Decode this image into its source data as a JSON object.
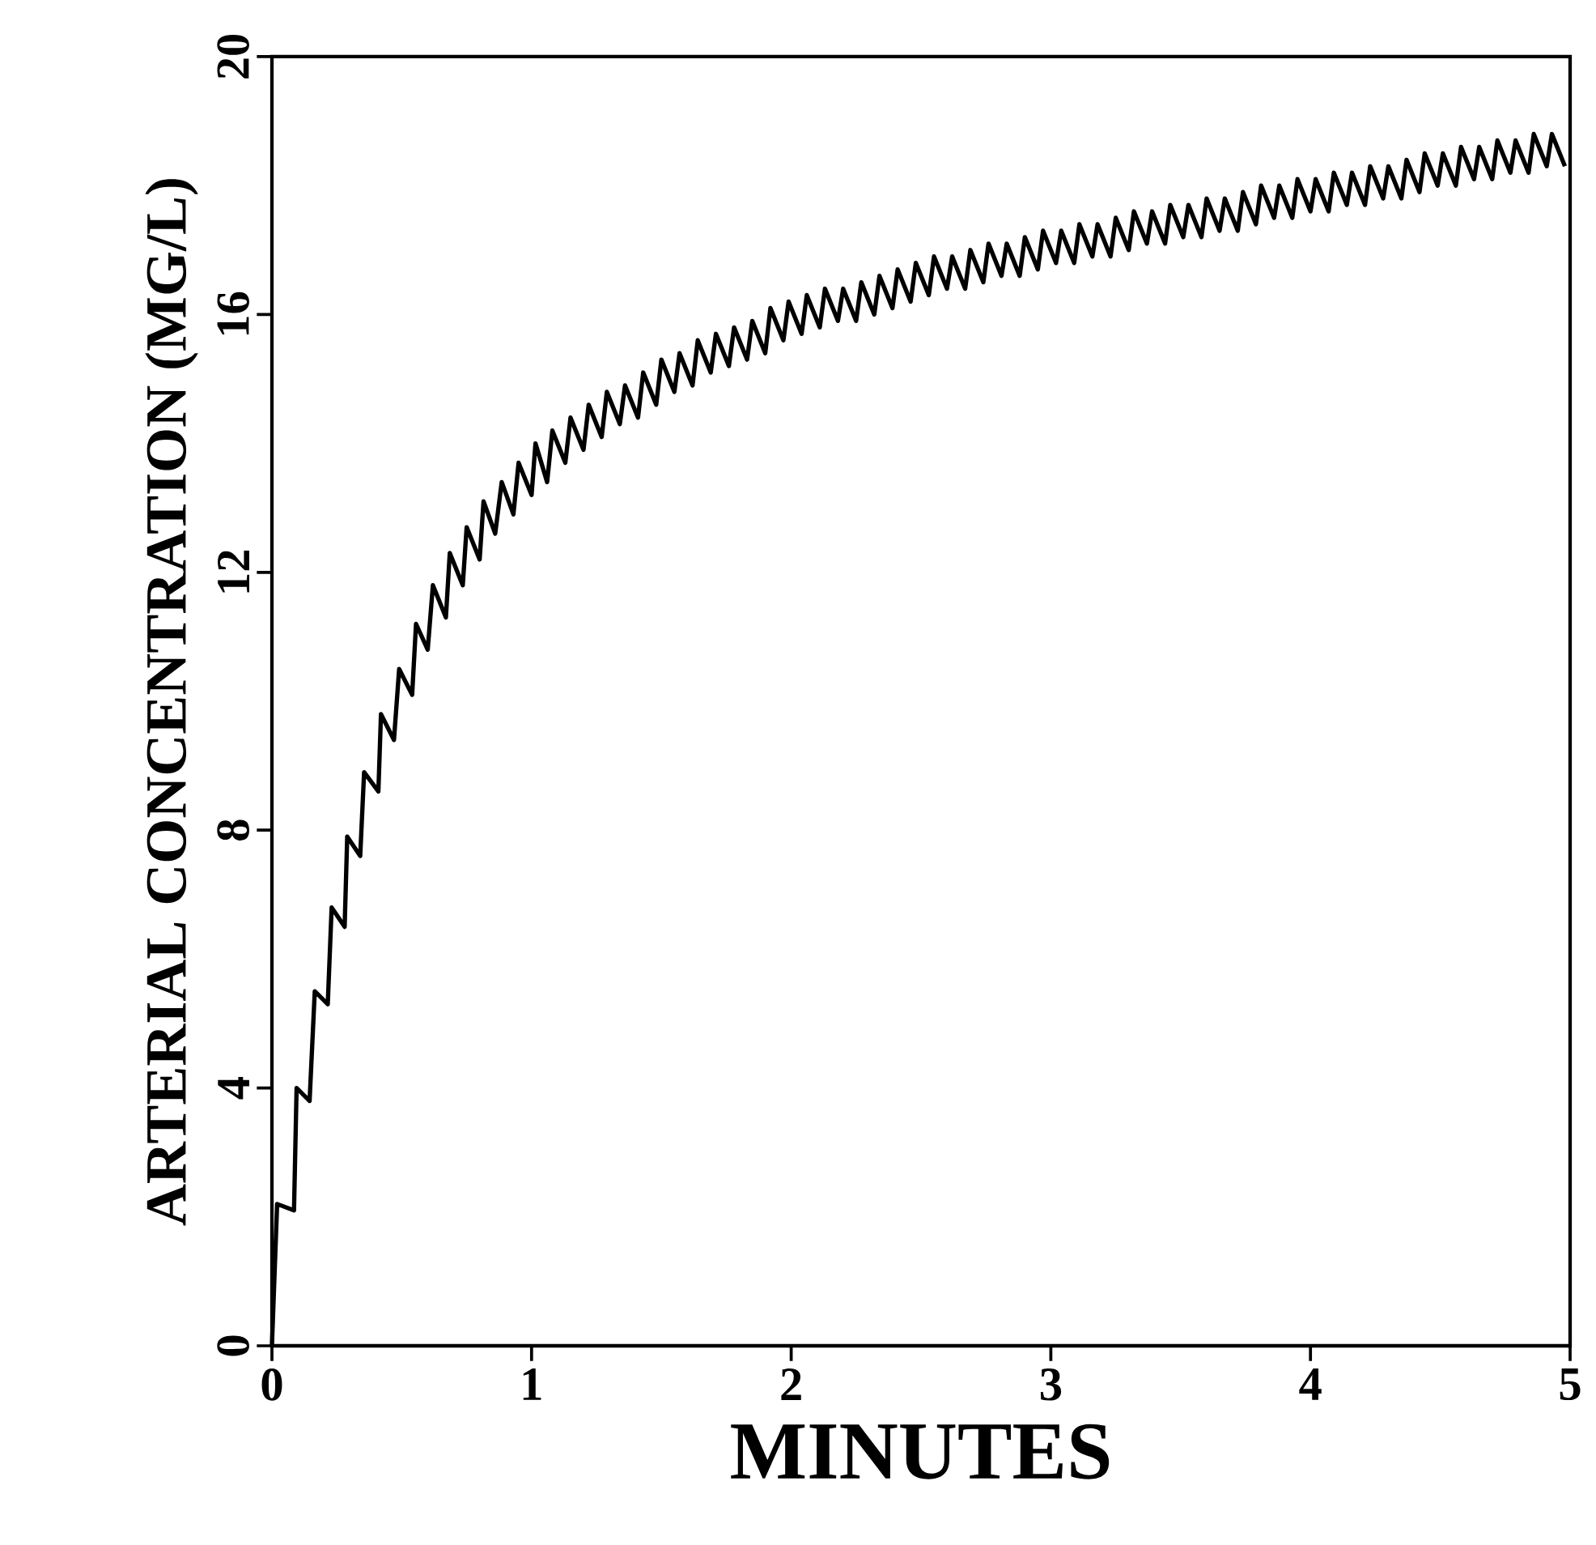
{
  "chart_data": {
    "type": "line",
    "xlabel": "MINUTES",
    "ylabel": "ARTERIAL CONCENTRATION (MG/L)",
    "color": "#000000",
    "marker": "none",
    "line_style": "solid",
    "xlim": [
      0,
      5
    ],
    "ylim": [
      0,
      20
    ],
    "xticks": [
      0,
      1,
      2,
      3,
      4,
      5
    ],
    "yticks": [
      0,
      4,
      8,
      12,
      16,
      20
    ],
    "x": [
      0,
      0.02,
      0.085,
      0.095,
      0.145,
      0.165,
      0.215,
      0.23,
      0.28,
      0.29,
      0.34,
      0.355,
      0.41,
      0.42,
      0.47,
      0.49,
      0.54,
      0.555,
      0.6,
      0.62,
      0.67,
      0.685,
      0.735,
      0.75,
      0.8,
      0.815,
      0.86,
      0.885,
      0.93,
      0.95,
      1.0,
      1.015,
      1.06,
      1.08,
      1.13,
      1.15,
      1.2,
      1.22,
      1.27,
      1.29,
      1.34,
      1.36,
      1.41,
      1.43,
      1.48,
      1.5,
      1.55,
      1.57,
      1.62,
      1.64,
      1.69,
      1.71,
      1.76,
      1.78,
      1.83,
      1.85,
      1.9,
      1.92,
      1.97,
      1.99,
      2.04,
      2.06,
      2.11,
      2.13,
      2.18,
      2.2,
      2.25,
      2.27,
      2.32,
      2.34,
      2.39,
      2.41,
      2.46,
      2.48,
      2.53,
      2.55,
      2.6,
      2.62,
      2.67,
      2.69,
      2.74,
      2.76,
      2.81,
      2.83,
      2.88,
      2.9,
      2.95,
      2.97,
      3.02,
      3.04,
      3.09,
      3.11,
      3.16,
      3.18,
      3.23,
      3.25,
      3.3,
      3.32,
      3.37,
      3.39,
      3.44,
      3.46,
      3.51,
      3.53,
      3.58,
      3.6,
      3.65,
      3.67,
      3.72,
      3.74,
      3.79,
      3.81,
      3.86,
      3.88,
      3.93,
      3.95,
      4.0,
      4.02,
      4.07,
      4.09,
      4.14,
      4.16,
      4.21,
      4.23,
      4.28,
      4.3,
      4.35,
      4.37,
      4.42,
      4.44,
      4.49,
      4.51,
      4.56,
      4.58,
      4.63,
      4.65,
      4.7,
      4.72,
      4.77,
      4.79,
      4.84,
      4.86,
      4.91,
      4.93,
      4.98
    ],
    "values": [
      0,
      2.2,
      2.1,
      4.0,
      3.8,
      5.5,
      5.3,
      6.8,
      6.5,
      7.9,
      7.6,
      8.9,
      8.6,
      9.8,
      9.4,
      10.5,
      10.1,
      11.2,
      10.8,
      11.8,
      11.3,
      12.3,
      11.8,
      12.7,
      12.2,
      13.1,
      12.6,
      13.4,
      12.9,
      13.7,
      13.2,
      14.0,
      13.4,
      14.2,
      13.7,
      14.4,
      13.9,
      14.6,
      14.1,
      14.8,
      14.3,
      14.9,
      14.4,
      15.1,
      14.6,
      15.3,
      14.8,
      15.4,
      14.9,
      15.6,
      15.1,
      15.7,
      15.2,
      15.8,
      15.3,
      15.9,
      15.4,
      16.1,
      15.6,
      16.2,
      15.7,
      16.3,
      15.8,
      16.4,
      15.9,
      16.4,
      15.9,
      16.5,
      16.0,
      16.6,
      16.1,
      16.7,
      16.2,
      16.8,
      16.3,
      16.9,
      16.4,
      16.9,
      16.4,
      17.0,
      16.5,
      17.1,
      16.6,
      17.1,
      16.6,
      17.2,
      16.7,
      17.3,
      16.8,
      17.3,
      16.8,
      17.4,
      16.9,
      17.4,
      16.9,
      17.5,
      17.0,
      17.6,
      17.1,
      17.6,
      17.1,
      17.7,
      17.2,
      17.7,
      17.2,
      17.8,
      17.3,
      17.8,
      17.3,
      17.9,
      17.4,
      18.0,
      17.5,
      18.0,
      17.5,
      18.1,
      17.6,
      18.1,
      17.6,
      18.2,
      17.7,
      18.2,
      17.7,
      18.3,
      17.8,
      18.3,
      17.8,
      18.4,
      17.9,
      18.5,
      18.0,
      18.5,
      18.0,
      18.6,
      18.1,
      18.6,
      18.1,
      18.7,
      18.2,
      18.7,
      18.2,
      18.8,
      18.3,
      18.8,
      18.3
    ]
  }
}
